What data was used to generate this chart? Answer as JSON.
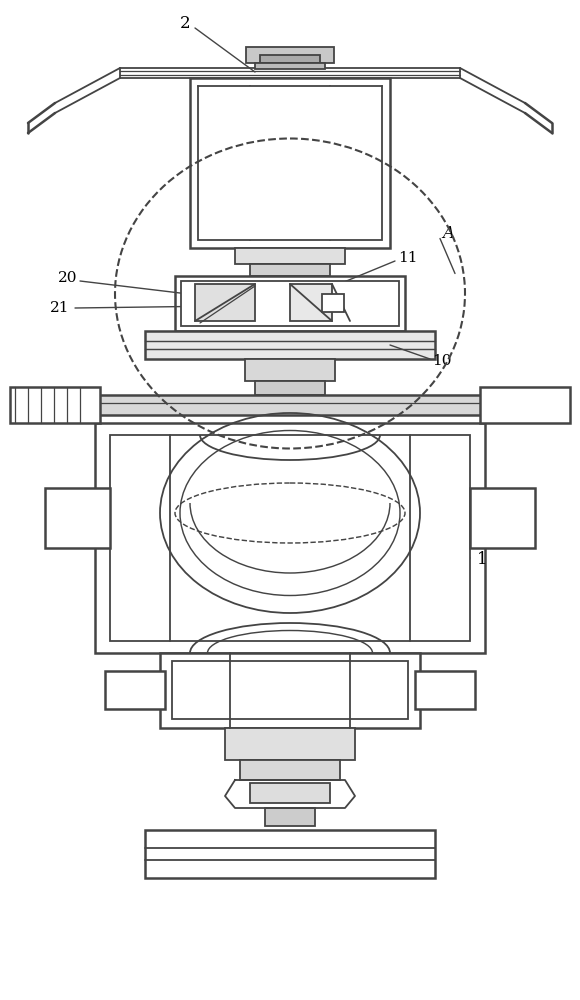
{
  "bg_color": "#ffffff",
  "line_color": "#444444",
  "lw": 1.3,
  "tlw": 1.8,
  "fig_w": 5.8,
  "fig_h": 10.0,
  "dpi": 100
}
